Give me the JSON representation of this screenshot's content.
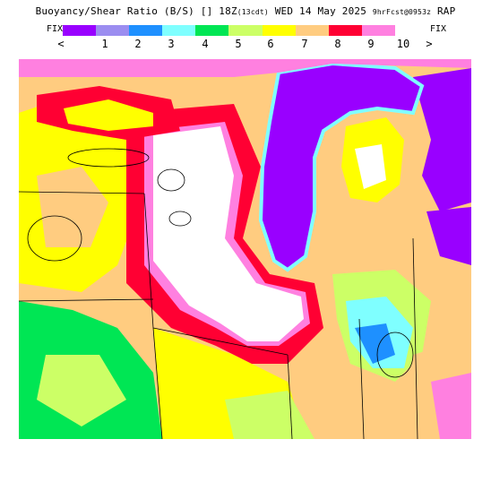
{
  "header": {
    "product": "Buoyancy/Shear Ratio (B/S)",
    "separator": "[]",
    "time": "18Z",
    "local_time": "(13cdt)",
    "date": "WED 14 May 2025",
    "forecast": "9hrFcst@0953z",
    "model": "RAP"
  },
  "scale": {
    "left_end": "FIX",
    "right_end": "FIX",
    "under_label": "<",
    "over_label": ">",
    "ticks": [
      "1",
      "2",
      "3",
      "4",
      "5",
      "6",
      "7",
      "8",
      "9",
      "10"
    ],
    "colors": [
      "#9900ff",
      "#9b8df0",
      "#1e90ff",
      "#7fffff",
      "#00e654",
      "#ccff66",
      "#ffff00",
      "#ffcc80",
      "#ff0033",
      "#ff80e0"
    ]
  },
  "map": {
    "background_color": "#ffffff",
    "water_color": "#9900ff"
  }
}
